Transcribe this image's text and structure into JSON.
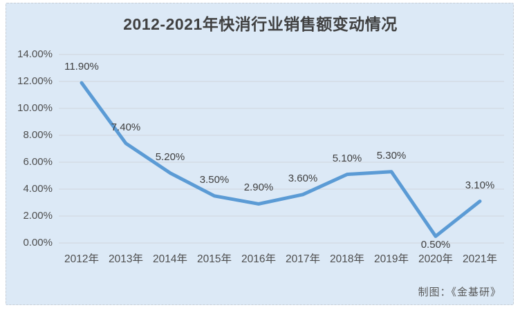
{
  "page": {
    "background": "#ffffff"
  },
  "card": {
    "background": "#dce9f6",
    "border_color": "#c6cdd6"
  },
  "chart": {
    "title": "2012-2021年快消行业销售额变动情况",
    "credit": "制图：《金基研》"
  },
  "chart_data": {
    "type": "line",
    "title": "2012-2021年快消行业销售额变动情况",
    "categories": [
      "2012年",
      "2013年",
      "2014年",
      "2015年",
      "2016年",
      "2017年",
      "2018年",
      "2019年",
      "2020年",
      "2021年"
    ],
    "series": [
      {
        "values": [
          11.9,
          7.4,
          5.2,
          3.5,
          2.9,
          3.6,
          5.1,
          5.3,
          0.5,
          3.1
        ],
        "labels": [
          "11.90%",
          "7.40%",
          "5.20%",
          "3.50%",
          "2.90%",
          "3.60%",
          "5.10%",
          "5.30%",
          "0.50%",
          "3.10%"
        ],
        "label_positions": [
          "above",
          "above",
          "above",
          "above",
          "above",
          "above",
          "above",
          "above",
          "below",
          "above"
        ]
      }
    ],
    "xlabel": "",
    "ylabel": "",
    "ylim": [
      0,
      14
    ],
    "y_ticks": {
      "values": [
        14,
        12,
        10,
        8,
        6,
        4,
        2,
        0
      ],
      "labels": [
        "14.00%",
        "12.00%",
        "10.00%",
        "8.00%",
        "6.00%",
        "4.00%",
        "2.00%",
        "0.00%"
      ]
    },
    "grid": true,
    "legend": false,
    "annotation": "制图：《金基研》"
  },
  "colors": {
    "background": "#dce9f6",
    "line": "#5b9bd5",
    "title_text": "#404040",
    "axis_text": "#4d4d4d",
    "label_text": "#3f3f3f",
    "gridline": "#d0d5dc",
    "credit_text": "#595959"
  }
}
